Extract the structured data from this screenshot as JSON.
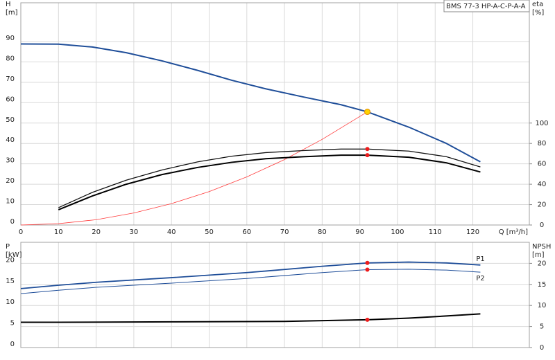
{
  "chart_data": [
    {
      "type": "line",
      "title": "BMS 77-3 HP-A-C-P-A-A",
      "ylabel": "H",
      "yunit": "[m]",
      "y2label": "eta",
      "y2unit": "[%]",
      "xlabel": "Q [m³/h]",
      "xlim": [
        0,
        135
      ],
      "xticks": [
        0,
        10,
        20,
        30,
        40,
        50,
        60,
        70,
        80,
        90,
        100,
        110,
        120
      ],
      "ylim": [
        0,
        109
      ],
      "yticks": [
        0,
        10,
        20,
        30,
        40,
        50,
        60,
        70,
        80,
        90
      ],
      "y2lim": [
        0,
        218
      ],
      "y2ticks": [
        0,
        20,
        40,
        60,
        80,
        100
      ],
      "grid": true,
      "series": [
        {
          "color": "#1f4e99",
          "linewidth": 2,
          "axis": "y",
          "x": [
            0,
            10,
            19,
            28,
            37.5,
            47,
            56,
            65,
            75,
            85,
            92,
            103,
            113,
            122
          ],
          "values": [
            88.8,
            88.7,
            87.3,
            84.5,
            80.5,
            75.8,
            71,
            66.8,
            62.8,
            59,
            55.5,
            48,
            40,
            31
          ]
        },
        {
          "color": "#ff3b3b",
          "linewidth": 0.8,
          "axis": "y",
          "x": [
            0,
            10,
            20,
            30,
            40,
            50,
            60,
            70,
            80,
            92
          ],
          "values": [
            0,
            0.66,
            2.6,
            5.9,
            10.5,
            16.4,
            23.6,
            32.1,
            42,
            55.5
          ]
        },
        {
          "color": "#111111",
          "linewidth": 1.3,
          "axis": "y2",
          "x": [
            10,
            19,
            28,
            37.5,
            47,
            56,
            65,
            75,
            85,
            92,
            103,
            113,
            122
          ],
          "values": [
            17,
            32,
            44,
            54,
            62,
            67.5,
            71,
            73,
            74.5,
            74.5,
            72.5,
            67,
            57
          ]
        },
        {
          "color": "#000000",
          "linewidth": 2,
          "axis": "y2",
          "x": [
            10,
            19,
            28,
            37.5,
            47,
            56,
            65,
            75,
            85,
            92,
            103,
            113,
            122
          ],
          "values": [
            15,
            28.5,
            40,
            49.5,
            56.5,
            61.5,
            65,
            67,
            68.5,
            68.5,
            66.5,
            61,
            52
          ]
        }
      ],
      "points": [
        {
          "x": 92,
          "y": 55.5,
          "axis": "y",
          "color": "#ffd200"
        },
        {
          "x": 92,
          "y": 74.5,
          "axis": "y2",
          "color": "#ee1c1c"
        },
        {
          "x": 92,
          "y": 68.5,
          "axis": "y2",
          "color": "#ee1c1c"
        }
      ]
    },
    {
      "type": "line",
      "ylabel": "P",
      "yunit": "[kW]",
      "y2label": "NPSH",
      "y2unit": "[m]",
      "xlim": [
        0,
        135
      ],
      "ylim": [
        0,
        25
      ],
      "yticks": [
        0,
        5,
        10,
        15,
        20
      ],
      "y2lim": [
        0,
        25
      ],
      "y2ticks": [
        0,
        5,
        10,
        15,
        20
      ],
      "grid": true,
      "series": [
        {
          "name": "P1",
          "color": "#1f4e99",
          "linewidth": 1.8,
          "axis": "y",
          "x": [
            0,
            10,
            20,
            40,
            60,
            80,
            92,
            103,
            113,
            122
          ],
          "values": [
            14,
            14.8,
            15.5,
            16.6,
            17.8,
            19.3,
            20.1,
            20.3,
            20.1,
            19.6
          ]
        },
        {
          "name": "P2",
          "color": "#1f4e99",
          "linewidth": 1,
          "axis": "y",
          "x": [
            0,
            10,
            20,
            40,
            60,
            80,
            92,
            103,
            113,
            122
          ],
          "values": [
            12.8,
            13.6,
            14.3,
            15.3,
            16.4,
            17.8,
            18.5,
            18.6,
            18.4,
            17.9
          ]
        },
        {
          "color": "#000000",
          "linewidth": 2,
          "axis": "y2",
          "x": [
            0,
            10,
            40,
            70,
            92,
            103,
            113,
            122
          ],
          "values": [
            6,
            6,
            6.1,
            6.2,
            6.6,
            7,
            7.5,
            8
          ]
        }
      ],
      "points": [
        {
          "x": 92,
          "y": 20.1,
          "axis": "y",
          "color": "#ee1c1c"
        },
        {
          "x": 92,
          "y": 18.5,
          "axis": "y",
          "color": "#ee1c1c"
        },
        {
          "x": 92,
          "y": 6.6,
          "axis": "y2",
          "color": "#ee1c1c"
        }
      ]
    }
  ]
}
